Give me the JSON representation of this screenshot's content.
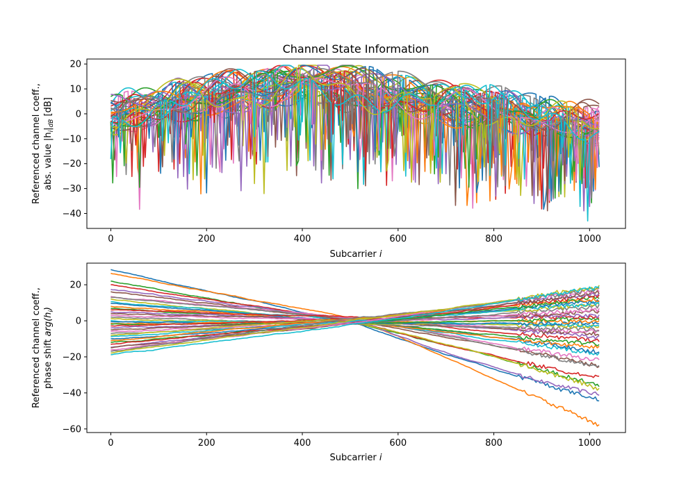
{
  "figure": {
    "title": "Channel State Information"
  },
  "chart_data": [
    {
      "type": "line",
      "title": "Channel State Information",
      "xlabel_prefix": "Subcarrier ",
      "xlabel_var": "i",
      "ylabel_line1": "Referenced channel coeff.,",
      "ylabel_line2_prefix": "abs. value |h",
      "ylabel_line2_sub": "i",
      "ylabel_line2_mid": "|",
      "ylabel_line2_sub2": "dB",
      "ylabel_line2_suffix": " [dB]",
      "xlim": [
        -50,
        1075
      ],
      "ylim": [
        -46,
        22
      ],
      "xticks": [
        0,
        200,
        400,
        600,
        800,
        1000
      ],
      "yticks": [
        -40,
        -30,
        -20,
        -10,
        0,
        10,
        20
      ],
      "grid": false,
      "legend": "none",
      "subcarriers": 1024,
      "num_series": 40,
      "envelope_db": {
        "start": 1,
        "peak": 13,
        "peak_at": 400,
        "end": -4
      },
      "ripple_db": 9,
      "deep_fade_floor_db": -43,
      "colors": [
        "#1f77b4",
        "#ff7f0e",
        "#2ca02c",
        "#d62728",
        "#9467bd",
        "#8c564b",
        "#e377c2",
        "#7f7f7f",
        "#bcbd22",
        "#17becf"
      ]
    },
    {
      "type": "line",
      "xlabel_prefix": "Subcarrier ",
      "xlabel_var": "i",
      "ylabel_line1": "Referenced channel coeff.,",
      "ylabel_line2_prefix": "phase shift ",
      "ylabel_line2_func": "arg",
      "ylabel_line2_open": "(h",
      "ylabel_line2_sub": "i",
      "ylabel_line2_close": ")",
      "xlim": [
        -50,
        1075
      ],
      "ylim": [
        -62,
        32
      ],
      "xticks": [
        0,
        200,
        400,
        600,
        800,
        1000
      ],
      "yticks": [
        -60,
        -40,
        -20,
        0,
        20
      ],
      "grid": false,
      "legend": "none",
      "subcarriers": 1024,
      "num_series": 40,
      "crossover_subcarrier": 512,
      "series_endpoints": [
        {
          "start": 28.3,
          "end": -44
        },
        {
          "start": 26.5,
          "end": -58.5
        },
        {
          "start": 22.0,
          "end": -36
        },
        {
          "start": 20.0,
          "end": -32
        },
        {
          "start": 17.5,
          "end": -41
        },
        {
          "start": 16.0,
          "end": -25
        },
        {
          "start": 13.5,
          "end": -22
        },
        {
          "start": 13.0,
          "end": -26
        },
        {
          "start": 12.0,
          "end": -38
        },
        {
          "start": 10.5,
          "end": -19
        },
        {
          "start": 9.5,
          "end": -17
        },
        {
          "start": 8.0,
          "end": -15
        },
        {
          "start": 7.0,
          "end": -13
        },
        {
          "start": 6.0,
          "end": -11
        },
        {
          "start": 5.0,
          "end": -9
        },
        {
          "start": 4.0,
          "end": -7
        },
        {
          "start": 3.0,
          "end": -6
        },
        {
          "start": 2.0,
          "end": -5
        },
        {
          "start": 1.0,
          "end": -3
        },
        {
          "start": 0.0,
          "end": -2
        },
        {
          "start": -0.5,
          "end": -1
        },
        {
          "start": -1.5,
          "end": 0
        },
        {
          "start": -2.0,
          "end": 1
        },
        {
          "start": -3.0,
          "end": 2
        },
        {
          "start": -4.0,
          "end": 3
        },
        {
          "start": -5.0,
          "end": 5
        },
        {
          "start": -6.0,
          "end": 6
        },
        {
          "start": -7.0,
          "end": 8
        },
        {
          "start": -8.0,
          "end": 9
        },
        {
          "start": -9.0,
          "end": 10
        },
        {
          "start": -10.0,
          "end": 11
        },
        {
          "start": -11.0,
          "end": 12
        },
        {
          "start": -12.0,
          "end": 13
        },
        {
          "start": -13.0,
          "end": 14
        },
        {
          "start": -14.5,
          "end": 15
        },
        {
          "start": -15.0,
          "end": 16
        },
        {
          "start": -16.0,
          "end": 17
        },
        {
          "start": -17.0,
          "end": 18
        },
        {
          "start": -18.0,
          "end": 19
        },
        {
          "start": -19.0,
          "end": 18.5
        }
      ],
      "colors": [
        "#1f77b4",
        "#ff7f0e",
        "#2ca02c",
        "#d62728",
        "#9467bd",
        "#8c564b",
        "#e377c2",
        "#7f7f7f",
        "#bcbd22",
        "#17becf"
      ]
    }
  ]
}
